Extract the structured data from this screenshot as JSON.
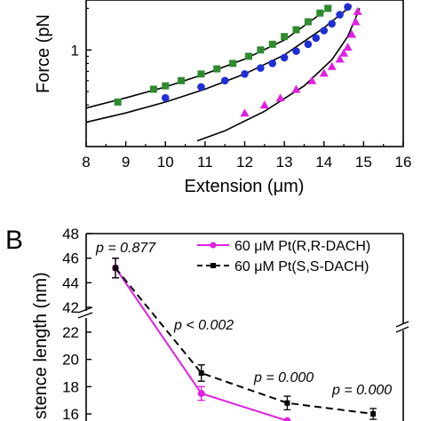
{
  "colors": {
    "green": "#2e8b2e",
    "blue": "#1f2fd6",
    "magenta": "#e020e0",
    "axis": "#000000"
  },
  "chart_data": [
    {
      "type": "scatter",
      "panel_label": "",
      "xlabel": "Extension (μm)",
      "ylabel": "Force (pN)",
      "ylabel_visible": "Force (pN",
      "xlim": [
        8,
        16
      ],
      "yscale": "log",
      "y_ticks_labeled": [
        "1"
      ],
      "x_ticks": [
        "8",
        "9",
        "10",
        "11",
        "12",
        "13",
        "14",
        "15",
        "16"
      ],
      "grid": false,
      "series": [
        {
          "marker": "square",
          "color": "#2e8b2e",
          "points": [
            [
              8.8,
              0.42
            ],
            [
              9.7,
              0.52
            ],
            [
              10.0,
              0.55
            ],
            [
              10.4,
              0.6
            ],
            [
              10.9,
              0.67
            ],
            [
              11.3,
              0.73
            ],
            [
              11.7,
              0.8
            ],
            [
              12.1,
              0.9
            ],
            [
              12.4,
              1.0
            ],
            [
              12.7,
              1.1
            ],
            [
              13.0,
              1.25
            ],
            [
              13.3,
              1.4
            ],
            [
              13.6,
              1.6
            ],
            [
              13.9,
              1.85
            ],
            [
              14.1,
              2.0
            ]
          ],
          "fit": [
            [
              8.0,
              0.38
            ],
            [
              9.0,
              0.45
            ],
            [
              10.0,
              0.54
            ],
            [
              11.0,
              0.67
            ],
            [
              12.0,
              0.86
            ],
            [
              13.0,
              1.18
            ],
            [
              14.0,
              1.9
            ]
          ]
        },
        {
          "marker": "circle",
          "color": "#1f2fd6",
          "points": [
            [
              10.0,
              0.45
            ],
            [
              10.9,
              0.54
            ],
            [
              11.5,
              0.6
            ],
            [
              12.0,
              0.67
            ],
            [
              12.4,
              0.74
            ],
            [
              12.7,
              0.8
            ],
            [
              13.0,
              0.88
            ],
            [
              13.3,
              0.98
            ],
            [
              13.6,
              1.1
            ],
            [
              13.8,
              1.22
            ],
            [
              14.0,
              1.38
            ],
            [
              14.2,
              1.55
            ],
            [
              14.4,
              1.8
            ],
            [
              14.6,
              2.05
            ]
          ],
          "fit": [
            [
              8.0,
              0.3
            ],
            [
              9.0,
              0.35
            ],
            [
              10.0,
              0.42
            ],
            [
              11.0,
              0.52
            ],
            [
              12.0,
              0.67
            ],
            [
              13.0,
              0.92
            ],
            [
              14.0,
              1.45
            ],
            [
              14.7,
              2.1
            ]
          ]
        },
        {
          "marker": "triangle",
          "color": "#e020e0",
          "points": [
            [
              12.0,
              0.35
            ],
            [
              12.5,
              0.4
            ],
            [
              12.9,
              0.45
            ],
            [
              13.3,
              0.52
            ],
            [
              13.7,
              0.6
            ],
            [
              14.0,
              0.68
            ],
            [
              14.2,
              0.76
            ],
            [
              14.4,
              0.86
            ],
            [
              14.5,
              0.95
            ],
            [
              14.6,
              1.05
            ],
            [
              14.7,
              1.3
            ],
            [
              14.8,
              1.6
            ],
            [
              14.85,
              1.9
            ]
          ],
          "fit": [
            [
              10.8,
              0.22
            ],
            [
              11.5,
              0.26
            ],
            [
              12.5,
              0.36
            ],
            [
              13.5,
              0.55
            ],
            [
              14.2,
              0.85
            ],
            [
              14.6,
              1.25
            ],
            [
              14.9,
              2.0
            ]
          ]
        }
      ]
    },
    {
      "type": "line",
      "panel_label": "B",
      "ylabel": "Persistence length (nm)",
      "ylabel_visible": "stence length (nm)",
      "y_axis_break": [
        22,
        42
      ],
      "y_ticks_upper": [
        "42",
        "44",
        "46",
        "48"
      ],
      "y_ticks_lower": [
        "16",
        "18",
        "20",
        "22"
      ],
      "legend": "top-right",
      "series": [
        {
          "name": "60 μM Pt(R,R-DACH)",
          "color": "#e020e0",
          "style": "solid-circle",
          "points": [
            [
              0,
              45.2
            ],
            [
              1,
              17.5
            ],
            [
              2,
              15.5
            ]
          ],
          "errors": [
            0.8,
            0.5,
            0.0
          ]
        },
        {
          "name": "60 μM Pt(S,S-DACH)",
          "color": "#000000",
          "style": "dashed-square",
          "points": [
            [
              0,
              45.2
            ],
            [
              1,
              19.0
            ],
            [
              2,
              16.8
            ],
            [
              3,
              16.0
            ]
          ],
          "errors": [
            0.8,
            0.6,
            0.5,
            0.4
          ]
        }
      ],
      "annotations": [
        "p = 0.877",
        "p < 0.002",
        "p = 0.000",
        "p = 0.000"
      ]
    }
  ]
}
